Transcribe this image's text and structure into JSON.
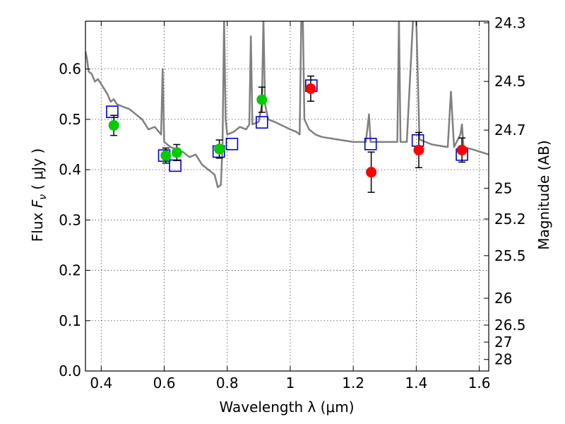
{
  "chart_data": {
    "type": "scatter",
    "title": "",
    "xlabel": "Wavelength  λ (μm)",
    "ylabel": "Flux  F_ν  ( μJy )",
    "ylabel_parts": {
      "prefix": "Flux ",
      "symbol": "F",
      "subscript": "ν",
      "unit": " ( μJy )"
    },
    "y2label": "Magnitude (AB)",
    "xlim": [
      0.35,
      1.63
    ],
    "ylim": [
      0.0,
      0.695
    ],
    "grid": true,
    "x_ticks": [
      0.4,
      0.6,
      0.8,
      1.0,
      1.2,
      1.4,
      1.6
    ],
    "x_tick_labels": [
      "0.4",
      "0.6",
      "0.8",
      "1",
      "1.2",
      "1.4",
      "1.6"
    ],
    "y_ticks": [
      0.0,
      0.1,
      0.2,
      0.3,
      0.4,
      0.5,
      0.6
    ],
    "y_tick_labels": [
      "0.0",
      "0.1",
      "0.2",
      "0.3",
      "0.4",
      "0.5",
      "0.6"
    ],
    "y2_ticks": [
      {
        "label": "24.3",
        "flux": 0.6918
      },
      {
        "label": "24.5",
        "flux": 0.5754
      },
      {
        "label": "24.7",
        "flux": 0.4786
      },
      {
        "label": "25",
        "flux": 0.3631
      },
      {
        "label": "25.2",
        "flux": 0.302
      },
      {
        "label": "25.5",
        "flux": 0.2291
      },
      {
        "label": "26",
        "flux": 0.1445
      },
      {
        "label": "26.5",
        "flux": 0.0912
      },
      {
        "label": "27",
        "flux": 0.0575
      },
      {
        "label": "28",
        "flux": 0.0229
      }
    ],
    "series": [
      {
        "kind": "line",
        "color": "#808080",
        "points": [
          [
            0.35,
            0.635
          ],
          [
            0.355,
            0.62
          ],
          [
            0.36,
            0.595
          ],
          [
            0.37,
            0.59
          ],
          [
            0.38,
            0.575
          ],
          [
            0.39,
            0.58
          ],
          [
            0.4,
            0.57
          ],
          [
            0.41,
            0.56
          ],
          [
            0.42,
            0.55
          ],
          [
            0.43,
            0.535
          ],
          [
            0.44,
            0.54
          ],
          [
            0.45,
            0.53
          ],
          [
            0.47,
            0.525
          ],
          [
            0.49,
            0.52
          ],
          [
            0.51,
            0.51
          ],
          [
            0.53,
            0.5
          ],
          [
            0.55,
            0.48
          ],
          [
            0.57,
            0.485
          ],
          [
            0.59,
            0.47
          ],
          [
            0.595,
            0.6
          ],
          [
            0.6,
            0.455
          ],
          [
            0.62,
            0.445
          ],
          [
            0.64,
            0.44
          ],
          [
            0.66,
            0.435
          ],
          [
            0.68,
            0.425
          ],
          [
            0.7,
            0.43
          ],
          [
            0.72,
            0.41
          ],
          [
            0.74,
            0.4
          ],
          [
            0.76,
            0.39
          ],
          [
            0.77,
            0.365
          ],
          [
            0.78,
            0.37
          ],
          [
            0.785,
            0.45
          ],
          [
            0.79,
            0.7
          ],
          [
            0.795,
            0.5
          ],
          [
            0.8,
            0.47
          ],
          [
            0.82,
            0.475
          ],
          [
            0.84,
            0.485
          ],
          [
            0.86,
            0.48
          ],
          [
            0.87,
            0.49
          ],
          [
            0.875,
            0.665
          ],
          [
            0.88,
            0.49
          ],
          [
            0.9,
            0.495
          ],
          [
            0.91,
            0.53
          ],
          [
            0.915,
            0.7
          ],
          [
            0.92,
            0.53
          ],
          [
            0.93,
            0.5
          ],
          [
            0.95,
            0.495
          ],
          [
            1.0,
            0.48
          ],
          [
            1.02,
            0.475
          ],
          [
            1.03,
            0.47
          ],
          [
            1.035,
            0.7
          ],
          [
            1.04,
            0.7
          ],
          [
            1.045,
            0.5
          ],
          [
            1.06,
            0.48
          ],
          [
            1.08,
            0.47
          ],
          [
            1.1,
            0.465
          ],
          [
            1.15,
            0.46
          ],
          [
            1.2,
            0.455
          ],
          [
            1.24,
            0.455
          ],
          [
            1.25,
            0.51
          ],
          [
            1.255,
            0.455
          ],
          [
            1.3,
            0.455
          ],
          [
            1.34,
            0.455
          ],
          [
            1.345,
            0.7
          ],
          [
            1.35,
            0.455
          ],
          [
            1.37,
            0.455
          ],
          [
            1.39,
            0.7
          ],
          [
            1.4,
            0.7
          ],
          [
            1.41,
            0.46
          ],
          [
            1.45,
            0.45
          ],
          [
            1.5,
            0.445
          ],
          [
            1.51,
            0.555
          ],
          [
            1.52,
            0.445
          ],
          [
            1.54,
            0.47
          ],
          [
            1.545,
            0.49
          ],
          [
            1.55,
            0.445
          ],
          [
            1.58,
            0.44
          ],
          [
            1.63,
            0.43
          ]
        ]
      },
      {
        "kind": "open-square",
        "color": "#0000cc",
        "points": [
          [
            0.435,
            0.515
          ],
          [
            0.6,
            0.428
          ],
          [
            0.635,
            0.408
          ],
          [
            0.773,
            0.436
          ],
          [
            0.815,
            0.451
          ],
          [
            0.91,
            0.494
          ],
          [
            1.067,
            0.567
          ],
          [
            1.255,
            0.451
          ],
          [
            1.405,
            0.458
          ],
          [
            1.545,
            0.43
          ]
        ]
      },
      {
        "kind": "filled-circle",
        "color": "#00cc00",
        "points": [
          [
            0.44,
            0.488
          ],
          [
            0.605,
            0.428
          ],
          [
            0.64,
            0.434
          ],
          [
            0.775,
            0.441
          ],
          [
            0.91,
            0.539
          ]
        ],
        "yerr": [
          0.02,
          0.015,
          0.016,
          0.018,
          0.025
        ]
      },
      {
        "kind": "filled-circle",
        "color": "#ff0000",
        "points": [
          [
            1.065,
            0.561
          ],
          [
            1.257,
            0.395
          ],
          [
            1.408,
            0.439
          ],
          [
            1.545,
            0.439
          ]
        ],
        "yerr": [
          0.025,
          0.04,
          0.035,
          0.024
        ]
      }
    ]
  }
}
